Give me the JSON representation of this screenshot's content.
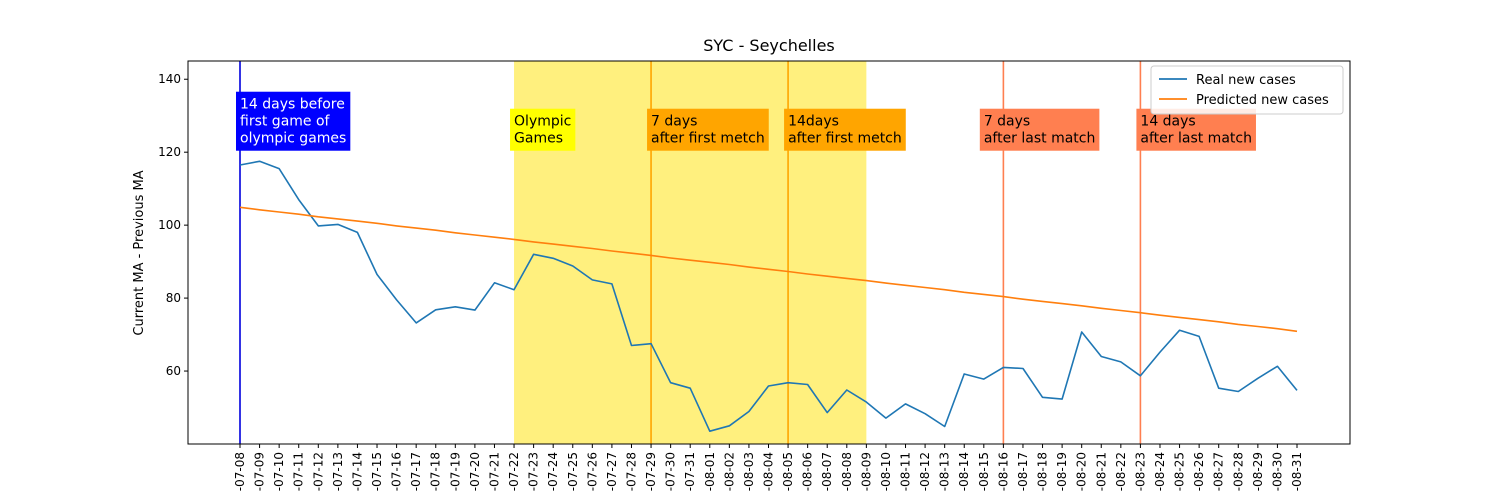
{
  "chart_data": {
    "type": "line",
    "title": "SYC - Seychelles",
    "ylabel": "Current MA - Previous MA",
    "xlabel": "",
    "ylim": [
      40,
      145
    ],
    "yticks": [
      60,
      80,
      100,
      120,
      140
    ],
    "grid": false,
    "legend_position": "top-right",
    "x": [
      "2021-07-08",
      "2021-07-09",
      "2021-07-10",
      "2021-07-11",
      "2021-07-12",
      "2021-07-13",
      "2021-07-14",
      "2021-07-15",
      "2021-07-16",
      "2021-07-17",
      "2021-07-18",
      "2021-07-19",
      "2021-07-20",
      "2021-07-21",
      "2021-07-22",
      "2021-07-23",
      "2021-07-24",
      "2021-07-25",
      "2021-07-26",
      "2021-07-27",
      "2021-07-28",
      "2021-07-29",
      "2021-07-30",
      "2021-07-31",
      "2021-08-01",
      "2021-08-02",
      "2021-08-03",
      "2021-08-04",
      "2021-08-05",
      "2021-08-06",
      "2021-08-07",
      "2021-08-08",
      "2021-08-09",
      "2021-08-10",
      "2021-08-11",
      "2021-08-12",
      "2021-08-13",
      "2021-08-14",
      "2021-08-15",
      "2021-08-16",
      "2021-08-17",
      "2021-08-18",
      "2021-08-19",
      "2021-08-20",
      "2021-08-21",
      "2021-08-22",
      "2021-08-23",
      "2021-08-24",
      "2021-08-25",
      "2021-08-26",
      "2021-08-27",
      "2021-08-28",
      "2021-08-29",
      "2021-08-30",
      "2021-08-31"
    ],
    "xtick_labels": [
      "-07-08",
      "-07-09",
      "-07-10",
      "-07-11",
      "-07-12",
      "-07-13",
      "-07-14",
      "-07-15",
      "-07-16",
      "-07-17",
      "-07-18",
      "-07-19",
      "-07-20",
      "-07-21",
      "-07-22",
      "-07-23",
      "-07-24",
      "-07-25",
      "-07-26",
      "-07-27",
      "-07-28",
      "-07-29",
      "-07-30",
      "-07-31",
      "-08-01",
      "-08-02",
      "-08-03",
      "-08-04",
      "-08-05",
      "-08-06",
      "-08-07",
      "-08-08",
      "-08-09",
      "-08-10",
      "-08-11",
      "-08-12",
      "-08-13",
      "-08-14",
      "-08-15",
      "-08-16",
      "-08-17",
      "-08-18",
      "-08-19",
      "-08-20",
      "-08-21",
      "-08-22",
      "-08-23",
      "-08-24",
      "-08-25",
      "-08-26",
      "-08-27",
      "-08-28",
      "-08-29",
      "-08-30",
      "-08-31"
    ],
    "series": [
      {
        "name": "Real new cases",
        "color": "#1f77b4",
        "values": [
          116.5,
          117.5,
          115.5,
          107,
          99.8,
          100.2,
          98,
          86.5,
          79.5,
          73.2,
          76.8,
          77.6,
          76.7,
          84.2,
          82.3,
          92,
          90.9,
          88.8,
          85,
          83.9,
          67,
          67.5,
          56.8,
          55.3,
          43.5,
          45,
          48.9,
          55.9,
          56.8,
          56.3,
          48.6,
          54.8,
          51.5,
          47.1,
          51,
          48.3,
          44.8,
          59.2,
          57.8,
          61,
          60.7,
          52.8,
          52.3,
          70.7,
          64,
          62.5,
          58.7,
          65.2,
          71.2,
          69.5,
          55.3,
          54.4,
          58,
          61.3,
          54.7
        ]
      },
      {
        "name": "Predicted new cases",
        "color": "#ff7f0e",
        "values": [
          104.9,
          104.2,
          103.6,
          103,
          102.3,
          101.7,
          101.1,
          100.5,
          99.8,
          99.2,
          98.6,
          97.9,
          97.3,
          96.7,
          96.1,
          95.4,
          94.8,
          94.2,
          93.6,
          92.9,
          92.3,
          91.7,
          91,
          90.4,
          89.8,
          89.2,
          88.5,
          87.9,
          87.3,
          86.6,
          86,
          85.4,
          84.8,
          84.1,
          83.5,
          82.9,
          82.3,
          81.6,
          81,
          80.4,
          79.7,
          79.1,
          78.5,
          77.9,
          77.2,
          76.6,
          76,
          75.3,
          74.7,
          74.1,
          73.5,
          72.8,
          72.2,
          71.6,
          70.9
        ]
      }
    ],
    "shaded_region": {
      "x_start": "2021-07-22",
      "x_end": "2021-08-09",
      "color": "#fff07e"
    },
    "vertical_lines": [
      {
        "x": "2021-07-08",
        "color": "#0000dd"
      },
      {
        "x": "2021-07-29",
        "color": "#ffa500"
      },
      {
        "x": "2021-08-05",
        "color": "#ffa500"
      },
      {
        "x": "2021-08-16",
        "color": "#ff7f50"
      },
      {
        "x": "2021-08-23",
        "color": "#ff7f50"
      }
    ],
    "annotations": [
      {
        "x": "2021-07-08",
        "y": 121.5,
        "lines": [
          "14 days before",
          "first game of",
          "olympic games"
        ],
        "bg": "#0000ff",
        "fg": "#ffffff"
      },
      {
        "x": "2021-07-22",
        "y": 121.5,
        "lines": [
          "Olympic",
          "Games"
        ],
        "bg": "#ffff00",
        "fg": "#000000"
      },
      {
        "x": "2021-07-29",
        "y": 121.5,
        "lines": [
          "7 days",
          "after first metch"
        ],
        "bg": "#ffa500",
        "fg": "#000000"
      },
      {
        "x": "2021-08-05",
        "y": 121.5,
        "lines": [
          "14days",
          "after first metch"
        ],
        "bg": "#ffa500",
        "fg": "#000000"
      },
      {
        "x": "2021-08-15",
        "y": 121.5,
        "lines": [
          "7 days",
          "after last match"
        ],
        "bg": "#ff7f50",
        "fg": "#000000"
      },
      {
        "x": "2021-08-23",
        "y": 121.5,
        "lines": [
          "14 days",
          "after last match"
        ],
        "bg": "#ff7f50",
        "fg": "#000000"
      }
    ]
  }
}
